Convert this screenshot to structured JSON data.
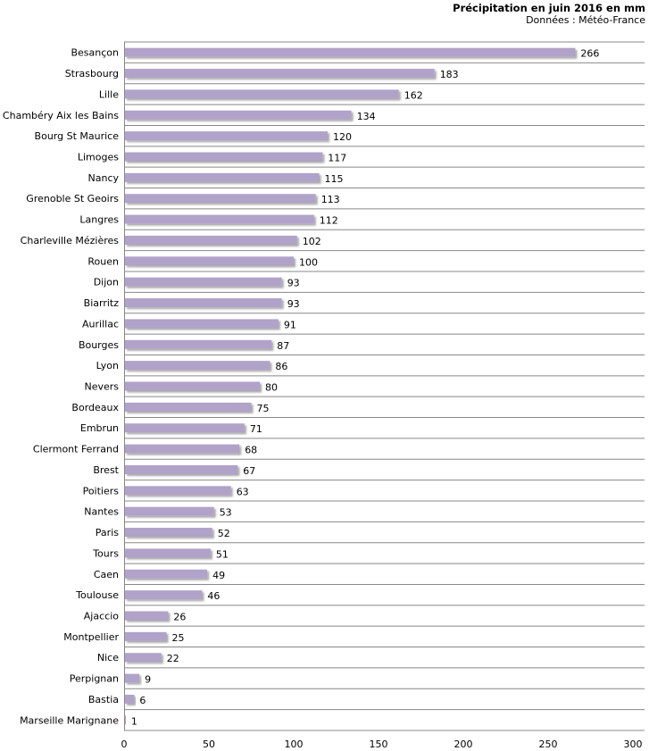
{
  "chart_data": {
    "type": "bar",
    "orientation": "horizontal",
    "title": "Précipitation en juin 2016 en mm",
    "subtitle": "Données : Météo-France",
    "xlabel": "",
    "ylabel": "",
    "xlim": [
      0,
      300
    ],
    "xticks": [
      0,
      50,
      100,
      150,
      200,
      250,
      300
    ],
    "bar_color": "#b1a2c9",
    "categories": [
      "Besançon",
      "Strasbourg",
      "Lille",
      "Chambéry Aix les Bains",
      "Bourg St Maurice",
      "Limoges",
      "Nancy",
      "Grenoble St Geoirs",
      "Langres",
      "Charleville Mézières",
      "Rouen",
      "Dijon",
      "Biarritz",
      "Aurillac",
      "Bourges",
      "Lyon",
      "Nevers",
      "Bordeaux",
      "Embrun",
      "Clermont Ferrand",
      "Brest",
      "Poitiers",
      "Nantes",
      "Paris",
      "Tours",
      "Caen",
      "Toulouse",
      "Ajaccio",
      "Montpellier",
      "Nice",
      "Perpignan",
      "Bastia",
      "Marseille Marignane"
    ],
    "values": [
      266,
      183,
      162,
      134,
      120,
      117,
      115,
      113,
      112,
      102,
      100,
      93,
      93,
      91,
      87,
      86,
      80,
      75,
      71,
      68,
      67,
      63,
      53,
      52,
      51,
      49,
      46,
      26,
      25,
      22,
      9,
      6,
      1
    ]
  }
}
